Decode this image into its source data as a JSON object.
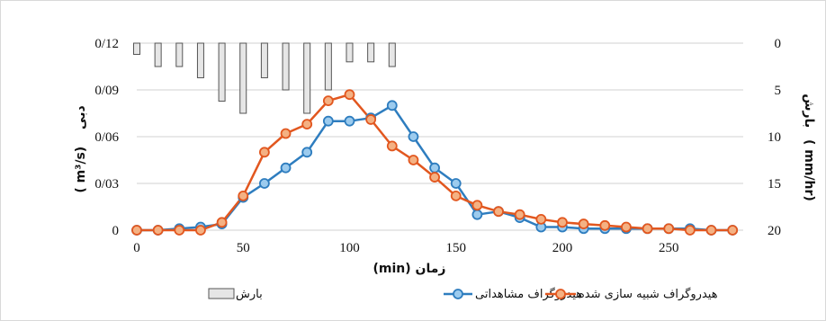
{
  "chart_data": {
    "type": "line",
    "x_label": "(min) زمان",
    "y_left_label": "دبی",
    "y_left_unit": "( m³/s)",
    "y_right_label": "بارش",
    "y_right_unit": "( mm/hr)",
    "x_ticks": [
      "0",
      "50",
      "100",
      "150",
      "200",
      "250"
    ],
    "y_left_ticks": [
      "0",
      "0/03",
      "0/06",
      "0/09",
      "0/12"
    ],
    "y_right_ticks": [
      "20",
      "15",
      "10",
      "5",
      "0"
    ],
    "xlim": [
      0,
      285
    ],
    "ylim_left": [
      0,
      0.12
    ],
    "ylim_right": [
      0,
      20
    ],
    "right_axis_inverted": true,
    "grid": true,
    "legend_position": "bottom",
    "legend": {
      "rain": "بارش",
      "observed": "هیدروگراف مشاهداتی",
      "simulated": "هیدروگراف شبیه سازی شده"
    },
    "colors": {
      "observed": "#2e7dbf",
      "observed_fill": "#9ccbee",
      "simulated": "#e2571f",
      "simulated_fill": "#f4b183",
      "rain_fill": "#e6e6e6",
      "rain_stroke": "#555555",
      "grid": "#d0d0d0"
    },
    "rain_bars": {
      "x": [
        0,
        10,
        20,
        30,
        40,
        50,
        60,
        70,
        80,
        90,
        100,
        110,
        120
      ],
      "values": [
        1.2,
        2.5,
        2.5,
        3.7,
        6.2,
        7.5,
        3.7,
        5.0,
        7.5,
        5.0,
        2.0,
        2.0,
        2.5
      ]
    },
    "series": [
      {
        "name": "هیدروگراف مشاهداتی",
        "x": [
          0,
          10,
          20,
          30,
          40,
          50,
          60,
          70,
          80,
          90,
          100,
          110,
          120,
          130,
          140,
          150,
          160,
          170,
          180,
          190,
          200,
          210,
          220,
          230,
          240,
          250,
          260,
          270,
          280
        ],
        "values": [
          0,
          0,
          0.001,
          0.002,
          0.004,
          0.021,
          0.03,
          0.04,
          0.05,
          0.07,
          0.07,
          0.072,
          0.08,
          0.06,
          0.04,
          0.03,
          0.01,
          0.012,
          0.008,
          0.002,
          0.002,
          0.001,
          0.001,
          0.001,
          0.001,
          0.001,
          0.001,
          0,
          0
        ]
      },
      {
        "name": "هیدروگراف شبیه سازی شده",
        "x": [
          0,
          10,
          20,
          30,
          40,
          50,
          60,
          70,
          80,
          90,
          100,
          110,
          120,
          130,
          140,
          150,
          160,
          170,
          180,
          190,
          200,
          210,
          220,
          230,
          240,
          250,
          260,
          270,
          280
        ],
        "values": [
          0,
          0,
          0,
          0,
          0.005,
          0.022,
          0.05,
          0.062,
          0.068,
          0.083,
          0.087,
          0.071,
          0.054,
          0.045,
          0.034,
          0.022,
          0.016,
          0.012,
          0.01,
          0.007,
          0.005,
          0.004,
          0.003,
          0.002,
          0.001,
          0.001,
          0,
          0,
          0
        ]
      }
    ]
  }
}
